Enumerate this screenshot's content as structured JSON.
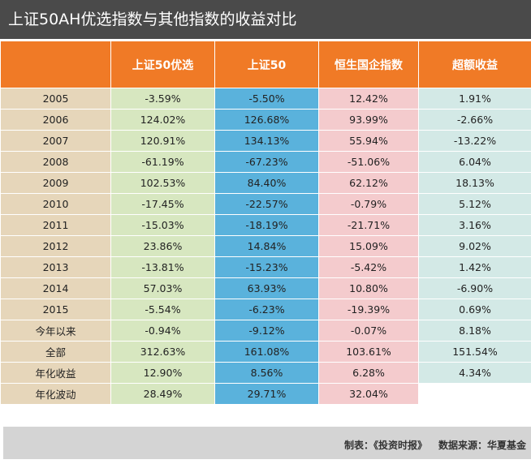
{
  "title": "上证50AH优选指数与其他指数的收益对比",
  "columns": [
    "",
    "上证50优选",
    "上证50",
    "恒生国企指数",
    "超额收益"
  ],
  "rows": [
    [
      "2005",
      "-3.59%",
      "-5.50%",
      "12.42%",
      "1.91%"
    ],
    [
      "2006",
      "124.02%",
      "126.68%",
      "93.99%",
      "-2.66%"
    ],
    [
      "2007",
      "120.91%",
      "134.13%",
      "55.94%",
      "-13.22%"
    ],
    [
      "2008",
      "-61.19%",
      "-67.23%",
      "-51.06%",
      "6.04%"
    ],
    [
      "2009",
      "102.53%",
      "84.40%",
      "62.12%",
      "18.13%"
    ],
    [
      "2010",
      "-17.45%",
      "-22.57%",
      "-0.79%",
      "5.12%"
    ],
    [
      "2011",
      "-15.03%",
      "-18.19%",
      "-21.71%",
      "3.16%"
    ],
    [
      "2012",
      "23.86%",
      "14.84%",
      "15.09%",
      "9.02%"
    ],
    [
      "2013",
      "-13.81%",
      "-15.23%",
      "-5.42%",
      "1.42%"
    ],
    [
      "2014",
      "57.03%",
      "63.93%",
      "10.80%",
      "-6.90%"
    ],
    [
      "2015",
      "-5.54%",
      "-6.23%",
      "-19.39%",
      "0.69%"
    ],
    [
      "今年以来",
      "-0.94%",
      "-9.12%",
      "-0.07%",
      "8.18%"
    ],
    [
      "全部",
      "312.63%",
      "161.08%",
      "103.61%",
      "151.54%"
    ],
    [
      "年化收益",
      "12.90%",
      "8.56%",
      "6.28%",
      "4.34%"
    ],
    [
      "年化波动",
      "28.49%",
      "29.71%",
      "32.04%",
      ""
    ]
  ],
  "footer": {
    "maker": "制表：《投资时报》",
    "source": "数据来源：华夏基金"
  }
}
